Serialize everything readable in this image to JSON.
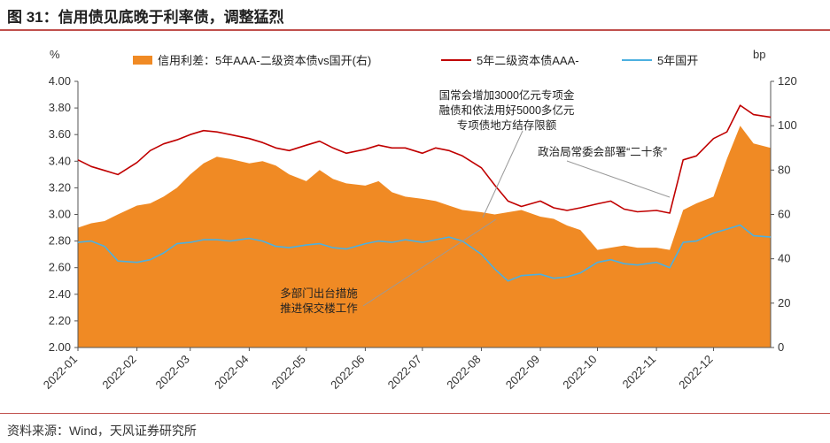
{
  "header": {
    "title": "图 31：信用债见底晚于利率债，调整猛烈"
  },
  "footer": {
    "source": "资料来源：Wind，天风证券研究所"
  },
  "chart_data": {
    "type": "line",
    "left_unit": "%",
    "right_unit": "bp",
    "left_axis": {
      "min": 2.0,
      "max": 4.0,
      "ticks": [
        "4.00",
        "3.80",
        "3.60",
        "3.40",
        "3.20",
        "3.00",
        "2.80",
        "2.60",
        "2.40",
        "2.20",
        "2.00"
      ]
    },
    "right_axis": {
      "min": 0,
      "max": 120,
      "ticks": [
        "120",
        "100",
        "80",
        "60",
        "40",
        "20",
        "0"
      ]
    },
    "x_ticks": [
      "2022-01",
      "2022-02",
      "2022-03",
      "2022-04",
      "2022-05",
      "2022-06",
      "2022-07",
      "2022-08",
      "2022-09",
      "2022-10",
      "2022-11",
      "2022-12"
    ],
    "legend_position": "top",
    "series": [
      {
        "name": "信用利差：5年AAA-二级资本债vs国开(右)",
        "type": "area",
        "axis": "right",
        "color": "#f08a24",
        "x": [
          "2022-01-01",
          "2022-01-08",
          "2022-01-15",
          "2022-01-22",
          "2022-02-01",
          "2022-02-08",
          "2022-02-15",
          "2022-02-22",
          "2022-03-01",
          "2022-03-08",
          "2022-03-15",
          "2022-03-22",
          "2022-04-01",
          "2022-04-08",
          "2022-04-15",
          "2022-04-22",
          "2022-05-01",
          "2022-05-08",
          "2022-05-15",
          "2022-05-22",
          "2022-06-01",
          "2022-06-08",
          "2022-06-15",
          "2022-06-22",
          "2022-07-01",
          "2022-07-08",
          "2022-07-15",
          "2022-07-22",
          "2022-08-01",
          "2022-08-08",
          "2022-08-15",
          "2022-08-22",
          "2022-09-01",
          "2022-09-08",
          "2022-09-15",
          "2022-09-22",
          "2022-10-01",
          "2022-10-08",
          "2022-10-15",
          "2022-10-22",
          "2022-11-01",
          "2022-11-08",
          "2022-11-15",
          "2022-11-22",
          "2022-12-01",
          "2022-12-08",
          "2022-12-15",
          "2022-12-22",
          "2022-12-31"
        ],
        "values": [
          54,
          56,
          57,
          60,
          64,
          65,
          68,
          72,
          78,
          83,
          86,
          85,
          83,
          84,
          82,
          78,
          75,
          80,
          76,
          74,
          73,
          75,
          70,
          68,
          67,
          66,
          64,
          62,
          61,
          60,
          61,
          62,
          59,
          58,
          55,
          53,
          44,
          45,
          46,
          45,
          45,
          44,
          62,
          65,
          68,
          85,
          100,
          92,
          90
        ]
      },
      {
        "name": "5年二级资本债AAA-",
        "type": "line",
        "axis": "left",
        "color": "#c00000",
        "x": [
          "2022-01-01",
          "2022-01-08",
          "2022-01-15",
          "2022-01-22",
          "2022-02-01",
          "2022-02-08",
          "2022-02-15",
          "2022-02-22",
          "2022-03-01",
          "2022-03-08",
          "2022-03-15",
          "2022-03-22",
          "2022-04-01",
          "2022-04-08",
          "2022-04-15",
          "2022-04-22",
          "2022-05-01",
          "2022-05-08",
          "2022-05-15",
          "2022-05-22",
          "2022-06-01",
          "2022-06-08",
          "2022-06-15",
          "2022-06-22",
          "2022-07-01",
          "2022-07-08",
          "2022-07-15",
          "2022-07-22",
          "2022-08-01",
          "2022-08-08",
          "2022-08-15",
          "2022-08-22",
          "2022-09-01",
          "2022-09-08",
          "2022-09-15",
          "2022-09-22",
          "2022-10-01",
          "2022-10-08",
          "2022-10-15",
          "2022-10-22",
          "2022-11-01",
          "2022-11-08",
          "2022-11-15",
          "2022-11-22",
          "2022-12-01",
          "2022-12-08",
          "2022-12-15",
          "2022-12-22",
          "2022-12-31"
        ],
        "values": [
          3.41,
          3.36,
          3.33,
          3.3,
          3.39,
          3.48,
          3.53,
          3.56,
          3.6,
          3.63,
          3.62,
          3.6,
          3.57,
          3.54,
          3.5,
          3.48,
          3.52,
          3.55,
          3.5,
          3.46,
          3.49,
          3.52,
          3.5,
          3.5,
          3.46,
          3.5,
          3.48,
          3.44,
          3.35,
          3.22,
          3.1,
          3.06,
          3.1,
          3.05,
          3.03,
          3.05,
          3.08,
          3.1,
          3.04,
          3.02,
          3.03,
          3.01,
          3.41,
          3.44,
          3.57,
          3.62,
          3.82,
          3.75,
          3.73
        ]
      },
      {
        "name": "5年国开",
        "type": "line",
        "axis": "left",
        "color": "#4cb0e0",
        "x": [
          "2022-01-01",
          "2022-01-08",
          "2022-01-15",
          "2022-01-22",
          "2022-02-01",
          "2022-02-08",
          "2022-02-15",
          "2022-02-22",
          "2022-03-01",
          "2022-03-08",
          "2022-03-15",
          "2022-03-22",
          "2022-04-01",
          "2022-04-08",
          "2022-04-15",
          "2022-04-22",
          "2022-05-01",
          "2022-05-08",
          "2022-05-15",
          "2022-05-22",
          "2022-06-01",
          "2022-06-08",
          "2022-06-15",
          "2022-06-22",
          "2022-07-01",
          "2022-07-08",
          "2022-07-15",
          "2022-07-22",
          "2022-08-01",
          "2022-08-08",
          "2022-08-15",
          "2022-08-22",
          "2022-09-01",
          "2022-09-08",
          "2022-09-15",
          "2022-09-22",
          "2022-10-01",
          "2022-10-08",
          "2022-10-15",
          "2022-10-22",
          "2022-11-01",
          "2022-11-08",
          "2022-11-15",
          "2022-11-22",
          "2022-12-01",
          "2022-12-08",
          "2022-12-15",
          "2022-12-22",
          "2022-12-31"
        ],
        "values": [
          2.79,
          2.8,
          2.76,
          2.65,
          2.64,
          2.66,
          2.71,
          2.78,
          2.79,
          2.81,
          2.81,
          2.8,
          2.82,
          2.8,
          2.76,
          2.75,
          2.77,
          2.78,
          2.75,
          2.74,
          2.78,
          2.8,
          2.79,
          2.81,
          2.79,
          2.81,
          2.83,
          2.8,
          2.7,
          2.59,
          2.5,
          2.54,
          2.55,
          2.52,
          2.53,
          2.56,
          2.64,
          2.66,
          2.63,
          2.62,
          2.64,
          2.6,
          2.79,
          2.8,
          2.86,
          2.89,
          2.92,
          2.84,
          2.83
        ]
      }
    ],
    "annotations": [
      {
        "lines": [
          "国常会增加3000亿元专项金",
          "融债和依法用好5000多亿元",
          "专项债地方结存限额"
        ],
        "target_date": "2022-08-22"
      },
      {
        "lines": [
          "政治局常委会部署“二十条”"
        ],
        "target_date": "2022-11-10"
      },
      {
        "lines": [
          "多部门出台措施",
          "推进保交楼工作"
        ],
        "target_date": "2022-08-08"
      }
    ]
  }
}
